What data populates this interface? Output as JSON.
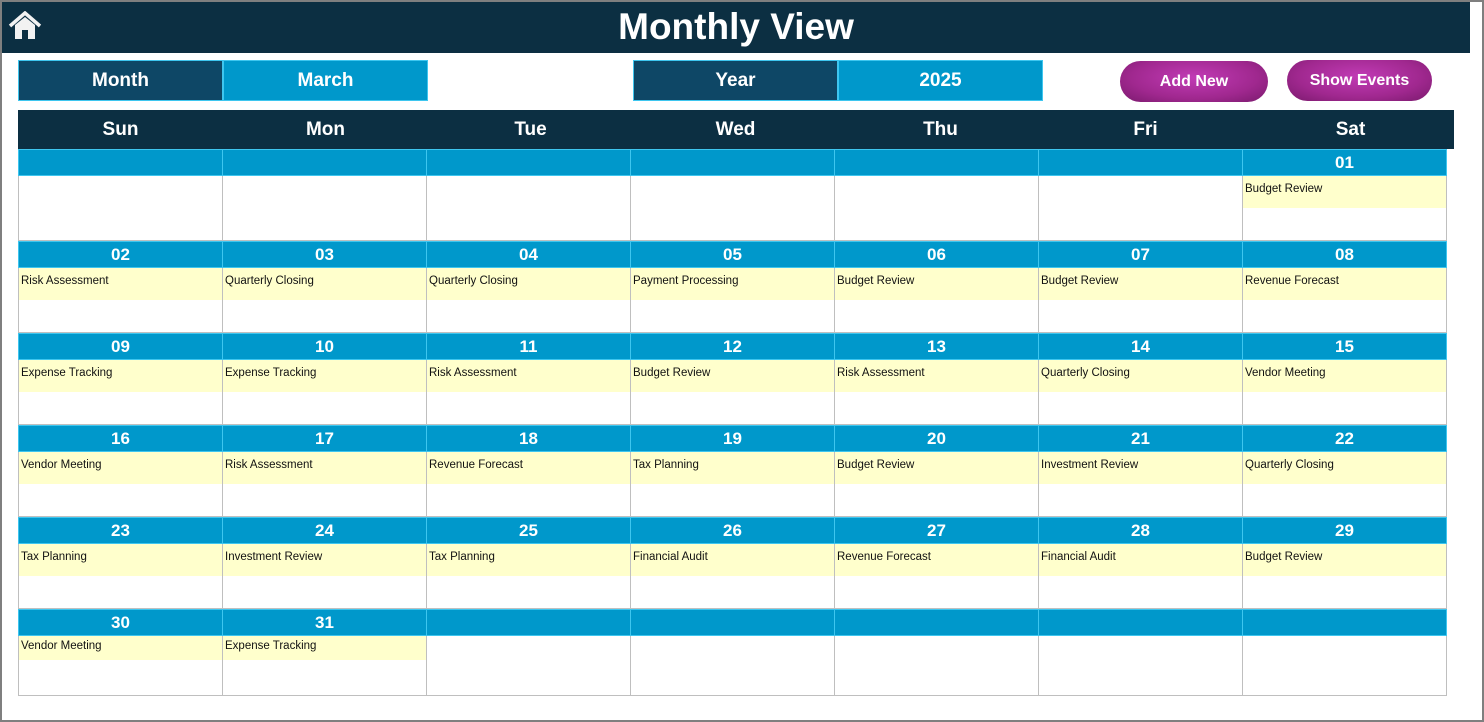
{
  "header": {
    "title": "Monthly View",
    "home_icon": "home-icon"
  },
  "controls": {
    "month_label": "Month",
    "month_value": "March",
    "year_label": "Year",
    "year_value": "2025",
    "add_new": "Add New",
    "show_events": "Show Events"
  },
  "colors": {
    "header_bg": "#0c2f42",
    "date_bar": "#0098cb",
    "event_bg": "#ffffcc",
    "button": "#a0288f"
  },
  "weekdays": [
    "Sun",
    "Mon",
    "Tue",
    "Wed",
    "Thu",
    "Fri",
    "Sat"
  ],
  "weeks": [
    [
      {
        "day": "",
        "event": ""
      },
      {
        "day": "",
        "event": ""
      },
      {
        "day": "",
        "event": ""
      },
      {
        "day": "",
        "event": ""
      },
      {
        "day": "",
        "event": ""
      },
      {
        "day": "",
        "event": ""
      },
      {
        "day": "01",
        "event": "Budget Review"
      }
    ],
    [
      {
        "day": "02",
        "event": "Risk Assessment"
      },
      {
        "day": "03",
        "event": "Quarterly Closing"
      },
      {
        "day": "04",
        "event": "Quarterly Closing"
      },
      {
        "day": "05",
        "event": "Payment Processing"
      },
      {
        "day": "06",
        "event": "Budget Review"
      },
      {
        "day": "07",
        "event": "Budget Review"
      },
      {
        "day": "08",
        "event": "Revenue Forecast"
      }
    ],
    [
      {
        "day": "09",
        "event": "Expense Tracking"
      },
      {
        "day": "10",
        "event": "Expense Tracking"
      },
      {
        "day": "11",
        "event": "Risk Assessment"
      },
      {
        "day": "12",
        "event": "Budget Review"
      },
      {
        "day": "13",
        "event": "Risk Assessment"
      },
      {
        "day": "14",
        "event": "Quarterly Closing"
      },
      {
        "day": "15",
        "event": "Vendor Meeting"
      }
    ],
    [
      {
        "day": "16",
        "event": "Vendor Meeting"
      },
      {
        "day": "17",
        "event": "Risk Assessment"
      },
      {
        "day": "18",
        "event": "Revenue Forecast"
      },
      {
        "day": "19",
        "event": "Tax Planning"
      },
      {
        "day": "20",
        "event": "Budget Review"
      },
      {
        "day": "21",
        "event": "Investment Review"
      },
      {
        "day": "22",
        "event": "Quarterly Closing"
      }
    ],
    [
      {
        "day": "23",
        "event": "Tax Planning"
      },
      {
        "day": "24",
        "event": "Investment Review"
      },
      {
        "day": "25",
        "event": "Tax Planning"
      },
      {
        "day": "26",
        "event": "Financial Audit"
      },
      {
        "day": "27",
        "event": "Revenue Forecast"
      },
      {
        "day": "28",
        "event": "Financial Audit"
      },
      {
        "day": "29",
        "event": "Budget Review"
      }
    ],
    [
      {
        "day": "30",
        "event": "Vendor Meeting"
      },
      {
        "day": "31",
        "event": "Expense Tracking"
      },
      {
        "day": "",
        "event": ""
      },
      {
        "day": "",
        "event": ""
      },
      {
        "day": "",
        "event": ""
      },
      {
        "day": "",
        "event": ""
      },
      {
        "day": "",
        "event": ""
      }
    ]
  ]
}
